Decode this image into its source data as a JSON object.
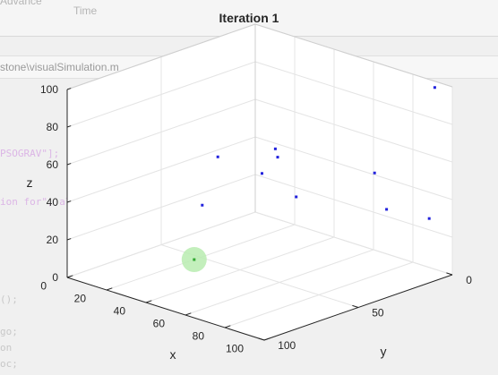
{
  "background": {
    "tab_advance": "Advance",
    "tab_time": "Time",
    "file_path": "stone\\visualSimulation.m",
    "code_lines": [
      {
        "text": "PSOGRAV\"];",
        "color": "purple"
      },
      {
        "text": "ion for\", algo))",
        "color": "purple"
      },
      {
        "text": "();",
        "color": "gray"
      },
      {
        "text": "go;",
        "color": "gray"
      },
      {
        "text": "on",
        "color": "gray"
      },
      {
        "text": "oc;",
        "color": "gray"
      }
    ]
  },
  "chart_data": {
    "type": "scatter3d",
    "title": "Iteration 1",
    "xlabel": "x",
    "ylabel": "y",
    "zlabel": "z",
    "xlim": [
      0,
      100
    ],
    "ylim": [
      0,
      100
    ],
    "zlim": [
      0,
      100
    ],
    "xticks": [
      0,
      20,
      40,
      60,
      80,
      100
    ],
    "yticks": [
      0,
      50,
      100
    ],
    "zticks": [
      0,
      20,
      40,
      60,
      80,
      100
    ],
    "grid": true,
    "particle_color": "#2222dd",
    "best_color": "#33aa33",
    "best_halo_color": "#b9ecb0",
    "particles": [
      {
        "x": 93,
        "y": 2,
        "z": 98
      },
      {
        "x": 56,
        "y": 48,
        "z": 69
      },
      {
        "x": 44,
        "y": 66,
        "z": 67
      },
      {
        "x": 54,
        "y": 53,
        "z": 57
      },
      {
        "x": 40,
        "y": 30,
        "z": 53
      },
      {
        "x": 72,
        "y": 12,
        "z": 49
      },
      {
        "x": 94,
        "y": 6,
        "z": 30
      },
      {
        "x": 38,
        "y": 68,
        "z": 40
      },
      {
        "x": 80,
        "y": 14,
        "z": 33
      },
      {
        "x": 58,
        "y": 39,
        "z": 41
      }
    ],
    "best": {
      "x": 53,
      "y": 88,
      "z": 23
    }
  }
}
